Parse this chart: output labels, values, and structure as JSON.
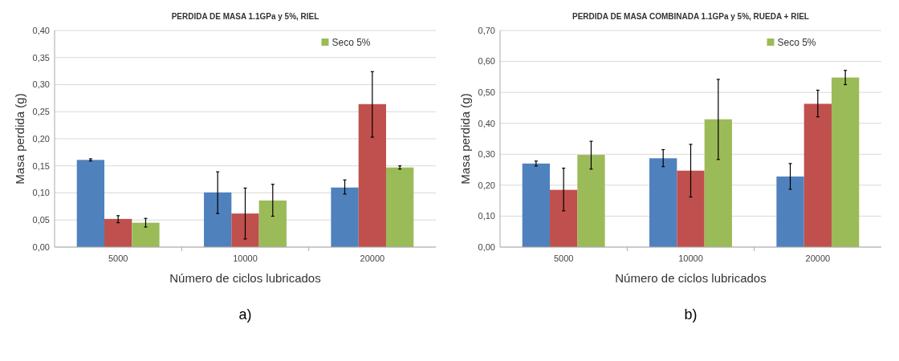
{
  "chart_data": [
    {
      "type": "bar",
      "title": "PERDIDA DE MASA 1.1GPa y 5%, RIEL",
      "xlabel": "Número de ciclos lubricados",
      "ylabel": "Masa perdida (g)",
      "categories": [
        "5000",
        "10000",
        "20000"
      ],
      "series": [
        {
          "color": "#4f81bd",
          "values": [
            0.161,
            0.101,
            0.11
          ],
          "errors": [
            [
              0.159,
              0.163
            ],
            [
              0.062,
              0.139
            ],
            [
              0.098,
              0.124
            ]
          ]
        },
        {
          "color": "#c0504d",
          "values": [
            0.052,
            0.062,
            0.264
          ],
          "errors": [
            [
              0.045,
              0.058
            ],
            [
              0.015,
              0.109
            ],
            [
              0.203,
              0.324
            ]
          ]
        },
        {
          "name": "Seco 5%",
          "color": "#9bbb59",
          "values": [
            0.045,
            0.086,
            0.147
          ],
          "errors": [
            [
              0.037,
              0.053
            ],
            [
              0.057,
              0.116
            ],
            [
              0.144,
              0.15
            ]
          ]
        }
      ],
      "ylim": [
        0,
        0.4
      ],
      "yticks": [
        {
          "value": 0,
          "label": "0,00"
        },
        {
          "value": 0.05,
          "label": "0,05"
        },
        {
          "value": 0.1,
          "label": "0,10"
        },
        {
          "value": 0.15,
          "label": "0,15"
        },
        {
          "value": 0.2,
          "label": "0,20"
        },
        {
          "value": 0.25,
          "label": "0,25"
        },
        {
          "value": 0.3,
          "label": "0,30"
        },
        {
          "value": 0.35,
          "label": "0,35"
        },
        {
          "value": 0.4,
          "label": "0,40"
        }
      ],
      "grid": "y",
      "legend": "top",
      "annotations": [
        "a)"
      ]
    },
    {
      "type": "bar",
      "title": "PERDIDA DE MASA COMBINADA 1.1GPa y 5%, RUEDA + RIEL",
      "xlabel": "Número de ciclos lubricados",
      "ylabel": "Masa perdida (g)",
      "categories": [
        "5000",
        "10000",
        "20000"
      ],
      "series": [
        {
          "color": "#4f81bd",
          "values": [
            0.27,
            0.287,
            0.228
          ],
          "errors": [
            [
              0.262,
              0.278
            ],
            [
              0.26,
              0.315
            ],
            [
              0.187,
              0.27
            ]
          ]
        },
        {
          "color": "#c0504d",
          "values": [
            0.185,
            0.247,
            0.463
          ],
          "errors": [
            [
              0.117,
              0.255
            ],
            [
              0.162,
              0.332
            ],
            [
              0.421,
              0.507
            ]
          ]
        },
        {
          "name": "Seco 5%",
          "color": "#9bbb59",
          "values": [
            0.298,
            0.413,
            0.548
          ],
          "errors": [
            [
              0.252,
              0.342
            ],
            [
              0.283,
              0.542
            ],
            [
              0.525,
              0.571
            ]
          ]
        }
      ],
      "ylim": [
        0,
        0.7
      ],
      "yticks": [
        {
          "value": 0,
          "label": "0,00"
        },
        {
          "value": 0.1,
          "label": "0,10"
        },
        {
          "value": 0.2,
          "label": "0,20"
        },
        {
          "value": 0.3,
          "label": "0,30"
        },
        {
          "value": 0.4,
          "label": "0,40"
        },
        {
          "value": 0.5,
          "label": "0,50"
        },
        {
          "value": 0.6,
          "label": "0,60"
        },
        {
          "value": 0.7,
          "label": "0,70"
        }
      ],
      "grid": "y",
      "legend": "top",
      "annotations": [
        "b)"
      ]
    }
  ]
}
